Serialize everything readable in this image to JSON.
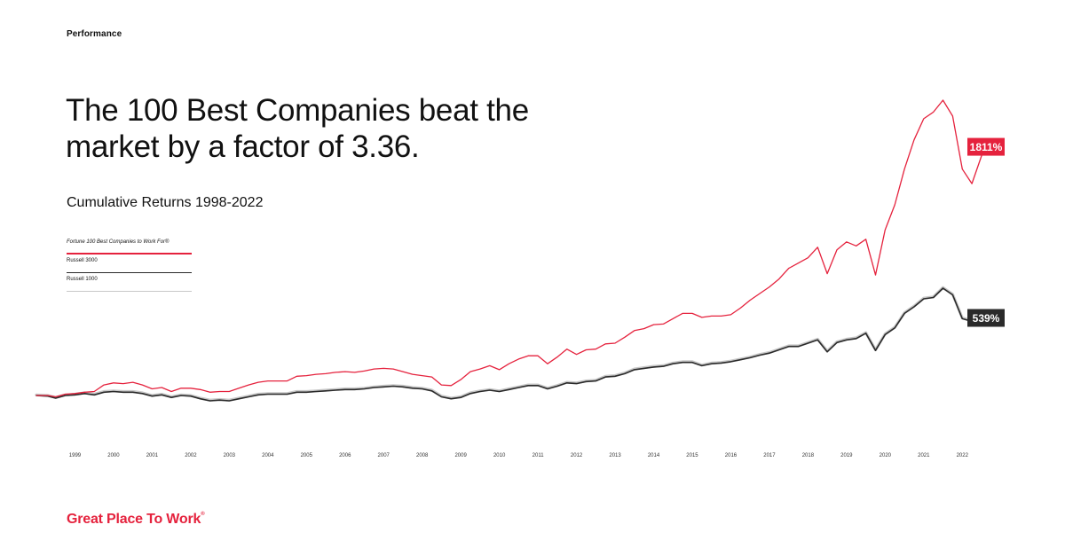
{
  "page": {
    "section_label": "Performance",
    "headline": "The 100 Best Companies beat the market by a factor of 3.36.",
    "subtitle": "Cumulative Returns 1998-2022",
    "logo_text": "Great Place To Work",
    "logo_mark": "®"
  },
  "legend": [
    {
      "label": "Fortune 100 Best Companies to Work For®",
      "color": "#e5223d"
    },
    {
      "label": "Russell 3000",
      "color": "#2a2a2a"
    },
    {
      "label": "Russell 1000",
      "color": "#c8c8c8"
    }
  ],
  "chart_data": {
    "type": "line",
    "x_ticks": [
      "1999",
      "2000",
      "2001",
      "2002",
      "2003",
      "2004",
      "2005",
      "2006",
      "2007",
      "2008",
      "2009",
      "2010",
      "2011",
      "2012",
      "2013",
      "2014",
      "2015",
      "2016",
      "2017",
      "2018",
      "2019",
      "2020",
      "2021",
      "2022"
    ],
    "xlim": [
      1998.0,
      2022.5
    ],
    "ylim": [
      -100,
      2200
    ],
    "grid": false,
    "series": [
      {
        "name": "Fortune 100 Best Companies to Work For®",
        "color": "#e5223d",
        "end_label": "1811%",
        "points": [
          [
            1998.0,
            0
          ],
          [
            1998.3,
            0
          ],
          [
            1998.5,
            -10
          ],
          [
            1998.75,
            10
          ],
          [
            1999.0,
            15
          ],
          [
            1999.25,
            25
          ],
          [
            1999.5,
            30
          ],
          [
            1999.75,
            80
          ],
          [
            2000.0,
            95
          ],
          [
            2000.25,
            90
          ],
          [
            2000.5,
            100
          ],
          [
            2000.75,
            80
          ],
          [
            2001.0,
            50
          ],
          [
            2001.25,
            60
          ],
          [
            2001.5,
            30
          ],
          [
            2001.75,
            55
          ],
          [
            2002.0,
            55
          ],
          [
            2002.25,
            45
          ],
          [
            2002.5,
            25
          ],
          [
            2002.75,
            30
          ],
          [
            2003.0,
            30
          ],
          [
            2003.25,
            55
          ],
          [
            2003.5,
            80
          ],
          [
            2003.75,
            100
          ],
          [
            2004.0,
            110
          ],
          [
            2004.25,
            110
          ],
          [
            2004.5,
            110
          ],
          [
            2004.75,
            145
          ],
          [
            2005.0,
            150
          ],
          [
            2005.25,
            160
          ],
          [
            2005.5,
            165
          ],
          [
            2005.75,
            175
          ],
          [
            2006.0,
            180
          ],
          [
            2006.25,
            175
          ],
          [
            2006.5,
            185
          ],
          [
            2006.75,
            200
          ],
          [
            2007.0,
            205
          ],
          [
            2007.25,
            200
          ],
          [
            2007.5,
            180
          ],
          [
            2007.75,
            160
          ],
          [
            2008.0,
            150
          ],
          [
            2008.25,
            140
          ],
          [
            2008.5,
            80
          ],
          [
            2008.75,
            75
          ],
          [
            2009.0,
            120
          ],
          [
            2009.25,
            180
          ],
          [
            2009.5,
            200
          ],
          [
            2009.75,
            225
          ],
          [
            2010.0,
            195
          ],
          [
            2010.25,
            240
          ],
          [
            2010.5,
            275
          ],
          [
            2010.75,
            300
          ],
          [
            2011.0,
            300
          ],
          [
            2011.25,
            240
          ],
          [
            2011.5,
            290
          ],
          [
            2011.75,
            350
          ],
          [
            2012.0,
            310
          ],
          [
            2012.25,
            345
          ],
          [
            2012.5,
            350
          ],
          [
            2012.75,
            390
          ],
          [
            2013.0,
            395
          ],
          [
            2013.25,
            440
          ],
          [
            2013.5,
            490
          ],
          [
            2013.75,
            505
          ],
          [
            2014.0,
            535
          ],
          [
            2014.25,
            540
          ],
          [
            2014.5,
            580
          ],
          [
            2014.75,
            620
          ],
          [
            2015.0,
            620
          ],
          [
            2015.25,
            590
          ],
          [
            2015.5,
            600
          ],
          [
            2015.75,
            600
          ],
          [
            2016.0,
            610
          ],
          [
            2016.25,
            660
          ],
          [
            2016.5,
            720
          ],
          [
            2016.75,
            770
          ],
          [
            2017.0,
            820
          ],
          [
            2017.25,
            880
          ],
          [
            2017.5,
            960
          ],
          [
            2017.75,
            1000
          ],
          [
            2018.0,
            1040
          ],
          [
            2018.25,
            1120
          ],
          [
            2018.5,
            920
          ],
          [
            2018.75,
            1100
          ],
          [
            2019.0,
            1160
          ],
          [
            2019.25,
            1130
          ],
          [
            2019.5,
            1180
          ],
          [
            2019.75,
            910
          ],
          [
            2020.0,
            1250
          ],
          [
            2020.25,
            1440
          ],
          [
            2020.5,
            1710
          ],
          [
            2020.75,
            1930
          ],
          [
            2021.0,
            2090
          ],
          [
            2021.25,
            2140
          ],
          [
            2021.5,
            2230
          ],
          [
            2021.75,
            2110
          ],
          [
            2022.0,
            1710
          ],
          [
            2022.25,
            1600
          ],
          [
            2022.5,
            1811
          ]
        ]
      },
      {
        "name": "Russell 3000",
        "color": "#2a2a2a",
        "end_label": "539%",
        "points": [
          [
            1998.0,
            0
          ],
          [
            1998.3,
            -5
          ],
          [
            1998.5,
            -20
          ],
          [
            1998.75,
            0
          ],
          [
            1999.0,
            5
          ],
          [
            1999.25,
            15
          ],
          [
            1999.5,
            5
          ],
          [
            1999.75,
            25
          ],
          [
            2000.0,
            30
          ],
          [
            2000.25,
            25
          ],
          [
            2000.5,
            25
          ],
          [
            2000.75,
            15
          ],
          [
            2001.0,
            -5
          ],
          [
            2001.25,
            5
          ],
          [
            2001.5,
            -15
          ],
          [
            2001.75,
            0
          ],
          [
            2002.0,
            -5
          ],
          [
            2002.25,
            -25
          ],
          [
            2002.5,
            -40
          ],
          [
            2002.75,
            -35
          ],
          [
            2003.0,
            -40
          ],
          [
            2003.25,
            -25
          ],
          [
            2003.5,
            -10
          ],
          [
            2003.75,
            5
          ],
          [
            2004.0,
            10
          ],
          [
            2004.25,
            10
          ],
          [
            2004.5,
            10
          ],
          [
            2004.75,
            25
          ],
          [
            2005.0,
            25
          ],
          [
            2005.25,
            30
          ],
          [
            2005.5,
            35
          ],
          [
            2005.75,
            40
          ],
          [
            2006.0,
            45
          ],
          [
            2006.25,
            45
          ],
          [
            2006.5,
            50
          ],
          [
            2006.75,
            60
          ],
          [
            2007.0,
            65
          ],
          [
            2007.25,
            70
          ],
          [
            2007.5,
            65
          ],
          [
            2007.75,
            55
          ],
          [
            2008.0,
            50
          ],
          [
            2008.25,
            35
          ],
          [
            2008.5,
            -10
          ],
          [
            2008.75,
            -25
          ],
          [
            2009.0,
            -15
          ],
          [
            2009.25,
            15
          ],
          [
            2009.5,
            30
          ],
          [
            2009.75,
            40
          ],
          [
            2010.0,
            30
          ],
          [
            2010.25,
            45
          ],
          [
            2010.5,
            60
          ],
          [
            2010.75,
            75
          ],
          [
            2011.0,
            75
          ],
          [
            2011.25,
            50
          ],
          [
            2011.5,
            70
          ],
          [
            2011.75,
            95
          ],
          [
            2012.0,
            90
          ],
          [
            2012.25,
            105
          ],
          [
            2012.5,
            110
          ],
          [
            2012.75,
            140
          ],
          [
            2013.0,
            145
          ],
          [
            2013.25,
            165
          ],
          [
            2013.5,
            195
          ],
          [
            2013.75,
            205
          ],
          [
            2014.0,
            215
          ],
          [
            2014.25,
            220
          ],
          [
            2014.5,
            240
          ],
          [
            2014.75,
            250
          ],
          [
            2015.0,
            250
          ],
          [
            2015.25,
            225
          ],
          [
            2015.5,
            240
          ],
          [
            2015.75,
            245
          ],
          [
            2016.0,
            255
          ],
          [
            2016.25,
            270
          ],
          [
            2016.5,
            285
          ],
          [
            2016.75,
            305
          ],
          [
            2017.0,
            320
          ],
          [
            2017.25,
            345
          ],
          [
            2017.5,
            370
          ],
          [
            2017.75,
            370
          ],
          [
            2018.0,
            395
          ],
          [
            2018.25,
            420
          ],
          [
            2018.5,
            330
          ],
          [
            2018.75,
            400
          ],
          [
            2019.0,
            420
          ],
          [
            2019.25,
            430
          ],
          [
            2019.5,
            470
          ],
          [
            2019.75,
            340
          ],
          [
            2020.0,
            460
          ],
          [
            2020.25,
            510
          ],
          [
            2020.5,
            620
          ],
          [
            2020.75,
            670
          ],
          [
            2021.0,
            730
          ],
          [
            2021.25,
            740
          ],
          [
            2021.5,
            810
          ],
          [
            2021.75,
            760
          ],
          [
            2022.0,
            580
          ],
          [
            2022.25,
            560
          ],
          [
            2022.5,
            539
          ]
        ]
      },
      {
        "name": "Russell 1000",
        "color": "#c8c8c8",
        "points": [
          [
            1998.0,
            5
          ],
          [
            1998.3,
            0
          ],
          [
            1998.5,
            -15
          ],
          [
            1998.75,
            5
          ],
          [
            1999.0,
            10
          ],
          [
            1999.25,
            20
          ],
          [
            1999.5,
            10
          ],
          [
            1999.75,
            30
          ],
          [
            2000.0,
            35
          ],
          [
            2000.25,
            30
          ],
          [
            2000.5,
            30
          ],
          [
            2000.75,
            20
          ],
          [
            2001.0,
            0
          ],
          [
            2001.25,
            10
          ],
          [
            2001.5,
            -10
          ],
          [
            2001.75,
            5
          ],
          [
            2002.0,
            0
          ],
          [
            2002.25,
            -20
          ],
          [
            2002.5,
            -35
          ],
          [
            2002.75,
            -30
          ],
          [
            2003.0,
            -35
          ],
          [
            2003.25,
            -20
          ],
          [
            2003.5,
            -5
          ],
          [
            2003.75,
            10
          ],
          [
            2004.0,
            15
          ],
          [
            2004.25,
            15
          ],
          [
            2004.5,
            15
          ],
          [
            2004.75,
            30
          ],
          [
            2005.0,
            30
          ],
          [
            2005.25,
            35
          ],
          [
            2005.5,
            40
          ],
          [
            2005.75,
            45
          ],
          [
            2006.0,
            50
          ],
          [
            2006.25,
            50
          ],
          [
            2006.5,
            55
          ],
          [
            2006.75,
            65
          ],
          [
            2007.0,
            70
          ],
          [
            2007.25,
            75
          ],
          [
            2007.5,
            70
          ],
          [
            2007.75,
            60
          ],
          [
            2008.0,
            55
          ],
          [
            2008.25,
            40
          ],
          [
            2008.5,
            -5
          ],
          [
            2008.75,
            -20
          ],
          [
            2009.0,
            -10
          ],
          [
            2009.25,
            20
          ],
          [
            2009.5,
            35
          ],
          [
            2009.75,
            45
          ],
          [
            2010.0,
            35
          ],
          [
            2010.25,
            50
          ],
          [
            2010.5,
            65
          ],
          [
            2010.75,
            80
          ],
          [
            2011.0,
            80
          ],
          [
            2011.25,
            55
          ],
          [
            2011.5,
            75
          ],
          [
            2011.75,
            100
          ],
          [
            2012.0,
            95
          ],
          [
            2012.25,
            110
          ],
          [
            2012.5,
            115
          ],
          [
            2012.75,
            145
          ],
          [
            2013.0,
            150
          ],
          [
            2013.25,
            170
          ],
          [
            2013.5,
            200
          ],
          [
            2013.75,
            210
          ],
          [
            2014.0,
            220
          ],
          [
            2014.25,
            225
          ],
          [
            2014.5,
            245
          ],
          [
            2014.75,
            255
          ],
          [
            2015.0,
            255
          ],
          [
            2015.25,
            230
          ],
          [
            2015.5,
            245
          ],
          [
            2015.75,
            250
          ],
          [
            2016.0,
            260
          ],
          [
            2016.25,
            275
          ],
          [
            2016.5,
            290
          ],
          [
            2016.75,
            310
          ],
          [
            2017.0,
            325
          ],
          [
            2017.25,
            350
          ],
          [
            2017.5,
            375
          ],
          [
            2017.75,
            375
          ],
          [
            2018.0,
            400
          ],
          [
            2018.25,
            425
          ],
          [
            2018.5,
            335
          ],
          [
            2018.75,
            405
          ],
          [
            2019.0,
            425
          ],
          [
            2019.25,
            435
          ],
          [
            2019.5,
            475
          ],
          [
            2019.75,
            345
          ],
          [
            2020.0,
            465
          ],
          [
            2020.25,
            515
          ],
          [
            2020.5,
            625
          ],
          [
            2020.75,
            675
          ],
          [
            2021.0,
            735
          ],
          [
            2021.25,
            745
          ],
          [
            2021.5,
            815
          ],
          [
            2021.75,
            765
          ],
          [
            2022.0,
            585
          ],
          [
            2022.25,
            565
          ],
          [
            2022.5,
            544
          ]
        ]
      }
    ]
  }
}
